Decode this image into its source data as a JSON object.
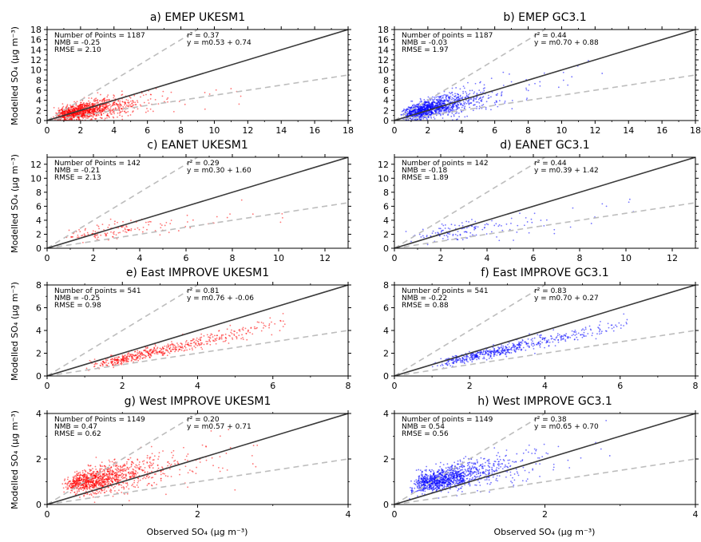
{
  "figure": {
    "ylabel": "Modelled SO₄ (µg m⁻³)",
    "xlabel": "Observed SO₄ (µg m⁻³)"
  },
  "colors": {
    "ukesm1": "#ff0000",
    "gc31": "#0000ff",
    "one_to_one": "#3a3a3a",
    "factor_two": "#bdbdbd"
  },
  "chart_data": [
    {
      "type": "scatter",
      "panel": "a",
      "title": "a) EMEP UKESM1",
      "model": "ukesm1",
      "xlim": [
        0,
        18
      ],
      "ylim": [
        0,
        18
      ],
      "xticks": [
        0,
        2,
        4,
        6,
        8,
        10,
        12,
        14,
        16,
        18
      ],
      "yticks": [
        0,
        2,
        4,
        6,
        8,
        10,
        12,
        14,
        16,
        18
      ],
      "stats": {
        "n": "Number of Points = 1187",
        "nmb": "NMB = -0.25",
        "rmse": "RMSE = 2.10",
        "r2": "r² = 0.37",
        "fit": "y = m0.53 + 0.74"
      },
      "n_points": 1187,
      "slope": 0.53,
      "intercept": 0.74,
      "cloud": {
        "xmode": 2.2,
        "xmax": 15,
        "spread": 1.1
      }
    },
    {
      "type": "scatter",
      "panel": "b",
      "title": "b) EMEP GC3.1",
      "model": "gc31",
      "xlim": [
        0,
        18
      ],
      "ylim": [
        0,
        18
      ],
      "xticks": [
        0,
        2,
        4,
        6,
        8,
        10,
        12,
        14,
        16,
        18
      ],
      "yticks": [
        0,
        2,
        4,
        6,
        8,
        10,
        12,
        14,
        16,
        18
      ],
      "stats": {
        "n": "Number of points = 1187",
        "nmb": "NMB = -0.03",
        "rmse": "RMSE = 1.97",
        "r2": "r² = 0.44",
        "fit": "y = m0.70 + 0.88"
      },
      "n_points": 1187,
      "slope": 0.7,
      "intercept": 0.88,
      "cloud": {
        "xmode": 2.2,
        "xmax": 16,
        "spread": 1.3
      }
    },
    {
      "type": "scatter",
      "panel": "c",
      "title": "c) EANET UKESM1",
      "model": "ukesm1",
      "xlim": [
        0,
        13
      ],
      "ylim": [
        0,
        13
      ],
      "xticks": [
        0,
        2,
        4,
        6,
        8,
        10,
        12
      ],
      "yticks": [
        0,
        2,
        4,
        6,
        8,
        10,
        12
      ],
      "stats": {
        "n": "Number of Points = 142",
        "nmb": "NMB = -0.21",
        "rmse": "RMSE = 2.13",
        "r2": "r² = 0.29",
        "fit": "y = m0.30 + 1.60"
      },
      "n_points": 142,
      "slope": 0.3,
      "intercept": 1.6,
      "cloud": {
        "xmode": 3.0,
        "xmax": 12.5,
        "spread": 0.9
      }
    },
    {
      "type": "scatter",
      "panel": "d",
      "title": "d) EANET GC3.1",
      "model": "gc31",
      "xlim": [
        0,
        13
      ],
      "ylim": [
        0,
        13
      ],
      "xticks": [
        0,
        2,
        4,
        6,
        8,
        10,
        12
      ],
      "yticks": [
        0,
        2,
        4,
        6,
        8,
        10,
        12
      ],
      "stats": {
        "n": "Number of points = 142",
        "nmb": "NMB = -0.18",
        "rmse": "RMSE = 1.89",
        "r2": "r² = 0.44",
        "fit": "y = m0.39 + 1.42"
      },
      "n_points": 142,
      "slope": 0.39,
      "intercept": 1.42,
      "cloud": {
        "xmode": 3.0,
        "xmax": 10.5,
        "spread": 0.9
      }
    },
    {
      "type": "scatter",
      "panel": "e",
      "title": "e) East IMPROVE UKESM1",
      "model": "ukesm1",
      "xlim": [
        0,
        8
      ],
      "ylim": [
        0,
        8
      ],
      "xticks": [
        0,
        2,
        4,
        6,
        8
      ],
      "yticks": [
        0,
        2,
        4,
        6,
        8
      ],
      "stats": {
        "n": "Number of points = 541",
        "nmb": "NMB = -0.25",
        "rmse": "RMSE = 0.98",
        "r2": "r² = 0.81",
        "fit": "y = m0.76 + -0.06"
      },
      "n_points": 541,
      "slope": 0.76,
      "intercept": -0.06,
      "cloud": {
        "xmode": 2.5,
        "xmin": 1.0,
        "xmax": 6.5,
        "spread": 0.35
      }
    },
    {
      "type": "scatter",
      "panel": "f",
      "title": "f) East IMPROVE GC3.1",
      "model": "gc31",
      "xlim": [
        0,
        8
      ],
      "ylim": [
        0,
        8
      ],
      "xticks": [
        0,
        2,
        4,
        6,
        8
      ],
      "yticks": [
        0,
        2,
        4,
        6,
        8
      ],
      "stats": {
        "n": "Number of points = 541",
        "nmb": "NMB = -0.22",
        "rmse": "RMSE = 0.88",
        "r2": "r² = 0.83",
        "fit": "y = m0.70 + 0.27"
      },
      "n_points": 541,
      "slope": 0.7,
      "intercept": 0.27,
      "cloud": {
        "xmode": 2.5,
        "xmin": 1.0,
        "xmax": 6.2,
        "spread": 0.3
      }
    },
    {
      "type": "scatter",
      "panel": "g",
      "title": "g) West IMPROVE UKESM1",
      "model": "ukesm1",
      "xlim": [
        0,
        4
      ],
      "ylim": [
        0,
        4
      ],
      "xticks": [
        0,
        2,
        4
      ],
      "yticks": [
        0,
        2,
        4
      ],
      "stats": {
        "n": "Number of Points = 1149",
        "nmb": "NMB = 0.47",
        "rmse": "RMSE = 0.62",
        "r2": "r² = 0.20",
        "fit": "y = m0.57 + 0.71"
      },
      "n_points": 1149,
      "slope": 0.57,
      "intercept": 0.71,
      "cloud": {
        "xmode": 0.6,
        "xmin": 0.2,
        "xmax": 2.8,
        "spread": 0.35
      }
    },
    {
      "type": "scatter",
      "panel": "h",
      "title": "h) West IMPROVE GC3.1",
      "model": "gc31",
      "xlim": [
        0,
        4
      ],
      "ylim": [
        0,
        4
      ],
      "xticks": [
        0,
        2,
        4
      ],
      "yticks": [
        0,
        2,
        4
      ],
      "stats": {
        "n": "Number of points = 1149",
        "nmb": "NMB = 0.54",
        "rmse": "RMSE = 0.56",
        "r2": "r² = 0.38",
        "fit": "y = m0.65 + 0.70"
      },
      "n_points": 1149,
      "slope": 0.65,
      "intercept": 0.7,
      "cloud": {
        "xmode": 0.6,
        "xmin": 0.2,
        "xmax": 2.9,
        "spread": 0.33
      }
    }
  ]
}
